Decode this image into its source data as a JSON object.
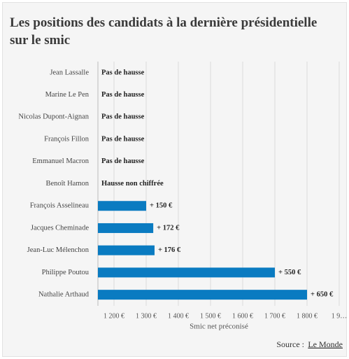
{
  "chart_data": {
    "type": "bar",
    "orientation": "horizontal",
    "title": "Les positions des candidats à la dernière présidentielle sur le smic",
    "categories": [
      "Jean Lassalle",
      "Marine Le Pen",
      "Nicolas Dupont-Aignan",
      "François Fillon",
      "Emmanuel Macron",
      "Benoît Hamon",
      "François Asselineau",
      "Jacques Cheminade",
      "Jean-Luc Mélenchon",
      "Philippe Poutou",
      "Nathalie Arthaud"
    ],
    "values": [
      null,
      null,
      null,
      null,
      null,
      null,
      1300,
      1322,
      1326,
      1700,
      1800
    ],
    "annotations": [
      "Pas de hausse",
      "Pas de hausse",
      "Pas de hausse",
      "Pas de hausse",
      "Pas de hausse",
      "Hausse non chiffrée",
      "+ 150 €",
      "+ 172 €",
      "+ 176 €",
      "+ 550 €",
      "+ 650 €"
    ],
    "color": "#0a7bc1",
    "xlim": [
      1150,
      1900
    ],
    "xticks": [
      {
        "value": 1200,
        "label": "1 200 €"
      },
      {
        "value": 1300,
        "label": "1 300 €"
      },
      {
        "value": 1400,
        "label": "1 400 €"
      },
      {
        "value": 1500,
        "label": "1 500 €"
      },
      {
        "value": 1600,
        "label": "1 600 €"
      },
      {
        "value": 1700,
        "label": "1 700 €"
      },
      {
        "value": 1800,
        "label": "1 800 €"
      },
      {
        "value": 1900,
        "label": "1 9…"
      }
    ],
    "xlabel": "Smic net préconisé",
    "grid": true,
    "source_label": "Source :",
    "source_name": "Le Monde"
  }
}
